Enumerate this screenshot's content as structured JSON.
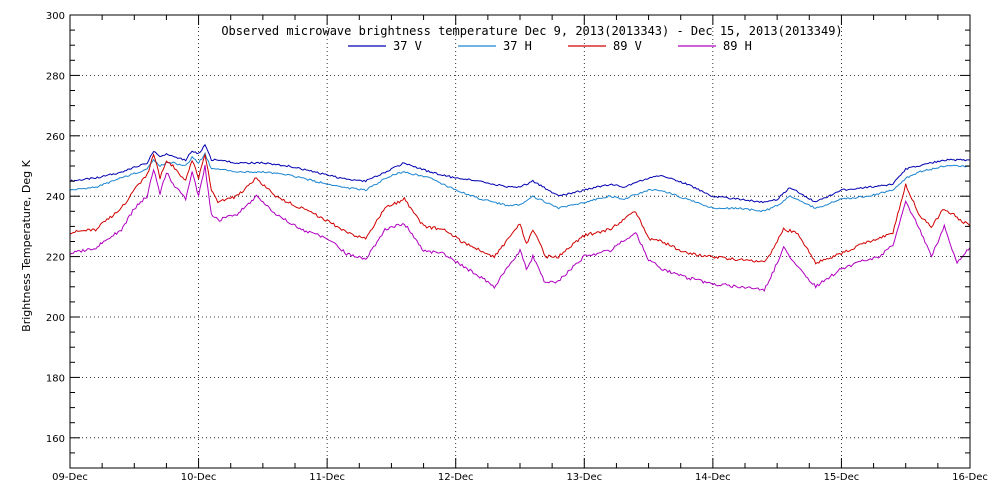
{
  "chart_data": {
    "type": "line",
    "title": "Observed microwave brightness temperature Dec  9, 2013(2013343) - Dec 15, 2013(2013349)",
    "ylabel": "Brightness Temperature, Deg K",
    "xlabel": "",
    "ylim": [
      150,
      300
    ],
    "yticks": [
      160,
      180,
      200,
      220,
      240,
      260,
      280,
      300
    ],
    "xlim": [
      0,
      7
    ],
    "xtick_labels": [
      "09-Dec",
      "10-Dec",
      "11-Dec",
      "12-Dec",
      "13-Dec",
      "14-Dec",
      "15-Dec",
      "16-Dec"
    ],
    "grid": true,
    "legend_placement": "top-center",
    "series": [
      {
        "name": "37 V",
        "color": "#0000b0",
        "x": [
          0,
          0.2,
          0.4,
          0.6,
          0.65,
          0.7,
          0.75,
          0.8,
          0.9,
          0.95,
          1.0,
          1.05,
          1.1,
          1.15,
          1.3,
          1.5,
          1.7,
          1.9,
          2.1,
          2.3,
          2.5,
          2.6,
          2.8,
          3.0,
          3.2,
          3.4,
          3.5,
          3.6,
          3.8,
          4.0,
          4.2,
          4.3,
          4.5,
          4.6,
          4.8,
          5.0,
          5.2,
          5.4,
          5.5,
          5.6,
          5.8,
          6.0,
          6.2,
          6.4,
          6.5,
          6.6,
          6.8,
          7.0
        ],
        "values": [
          245,
          246,
          248,
          251,
          255,
          253,
          254,
          253,
          252,
          255,
          254,
          257,
          252,
          252,
          251,
          251,
          250,
          248,
          246,
          245,
          249,
          251,
          248,
          246,
          245,
          243,
          243,
          245,
          240,
          242,
          244,
          243,
          246,
          247,
          244,
          240,
          239,
          238,
          239,
          243,
          238,
          242,
          243,
          244,
          249,
          250,
          252,
          252
        ]
      },
      {
        "name": "37 H",
        "color": "#1c86d0",
        "x": [
          0,
          0.2,
          0.4,
          0.6,
          0.65,
          0.7,
          0.75,
          0.8,
          0.9,
          0.95,
          1.0,
          1.05,
          1.1,
          1.15,
          1.3,
          1.5,
          1.7,
          1.9,
          2.1,
          2.3,
          2.5,
          2.6,
          2.8,
          3.0,
          3.2,
          3.4,
          3.5,
          3.6,
          3.8,
          4.0,
          4.2,
          4.3,
          4.5,
          4.6,
          4.8,
          5.0,
          5.2,
          5.4,
          5.5,
          5.6,
          5.8,
          6.0,
          6.2,
          6.4,
          6.5,
          6.6,
          6.8,
          7.0
        ],
        "values": [
          242,
          243,
          246,
          249,
          252,
          250,
          251,
          251,
          250,
          253,
          251,
          254,
          249,
          249,
          248,
          248,
          247,
          245,
          243,
          242,
          247,
          248,
          246,
          242,
          239,
          237,
          237,
          240,
          236,
          238,
          240,
          239,
          242,
          242,
          239,
          236,
          236,
          235,
          237,
          240,
          236,
          239,
          240,
          242,
          246,
          248,
          250,
          250
        ]
      },
      {
        "name": "89 V",
        "color": "#d00000",
        "x": [
          0,
          0.2,
          0.4,
          0.5,
          0.6,
          0.65,
          0.7,
          0.75,
          0.8,
          0.9,
          0.95,
          1.0,
          1.05,
          1.1,
          1.15,
          1.3,
          1.45,
          1.6,
          1.8,
          2.0,
          2.15,
          2.3,
          2.45,
          2.6,
          2.75,
          2.9,
          3.05,
          3.2,
          3.3,
          3.45,
          3.5,
          3.55,
          3.6,
          3.7,
          3.8,
          4.0,
          4.2,
          4.3,
          4.4,
          4.5,
          4.6,
          4.8,
          5.0,
          5.2,
          5.4,
          5.45,
          5.55,
          5.65,
          5.8,
          6.0,
          6.2,
          6.3,
          6.4,
          6.5,
          6.6,
          6.7,
          6.8,
          6.9,
          7.0
        ],
        "values": [
          228,
          229,
          236,
          242,
          247,
          254,
          246,
          252,
          250,
          245,
          252,
          246,
          254,
          242,
          238,
          240,
          246,
          240,
          236,
          232,
          228,
          226,
          236,
          239,
          230,
          229,
          225,
          222,
          220,
          228,
          231,
          224,
          229,
          220,
          220,
          227,
          229,
          232,
          235,
          226,
          225,
          221,
          220,
          219,
          218,
          221,
          229,
          228,
          218,
          221,
          225,
          226,
          228,
          244,
          234,
          230,
          236,
          233,
          230
        ]
      },
      {
        "name": "89 H",
        "color": "#b000c0",
        "x": [
          0,
          0.2,
          0.4,
          0.5,
          0.6,
          0.65,
          0.7,
          0.75,
          0.8,
          0.9,
          0.95,
          1.0,
          1.05,
          1.1,
          1.15,
          1.3,
          1.45,
          1.6,
          1.8,
          2.0,
          2.15,
          2.3,
          2.45,
          2.6,
          2.75,
          2.9,
          3.05,
          3.2,
          3.3,
          3.45,
          3.5,
          3.55,
          3.6,
          3.7,
          3.8,
          4.0,
          4.2,
          4.3,
          4.4,
          4.5,
          4.6,
          4.8,
          5.0,
          5.2,
          5.4,
          5.45,
          5.55,
          5.65,
          5.8,
          6.0,
          6.2,
          6.3,
          6.4,
          6.5,
          6.6,
          6.7,
          6.8,
          6.9,
          7.0
        ],
        "values": [
          221,
          223,
          229,
          236,
          240,
          249,
          241,
          248,
          244,
          239,
          248,
          240,
          250,
          234,
          232,
          234,
          240,
          234,
          229,
          226,
          221,
          219,
          229,
          231,
          222,
          221,
          217,
          213,
          210,
          219,
          222,
          216,
          220,
          211,
          212,
          220,
          222,
          225,
          228,
          219,
          216,
          213,
          211,
          210,
          209,
          213,
          223,
          217,
          210,
          216,
          219,
          220,
          224,
          238,
          230,
          220,
          230,
          218,
          223
        ]
      }
    ]
  }
}
